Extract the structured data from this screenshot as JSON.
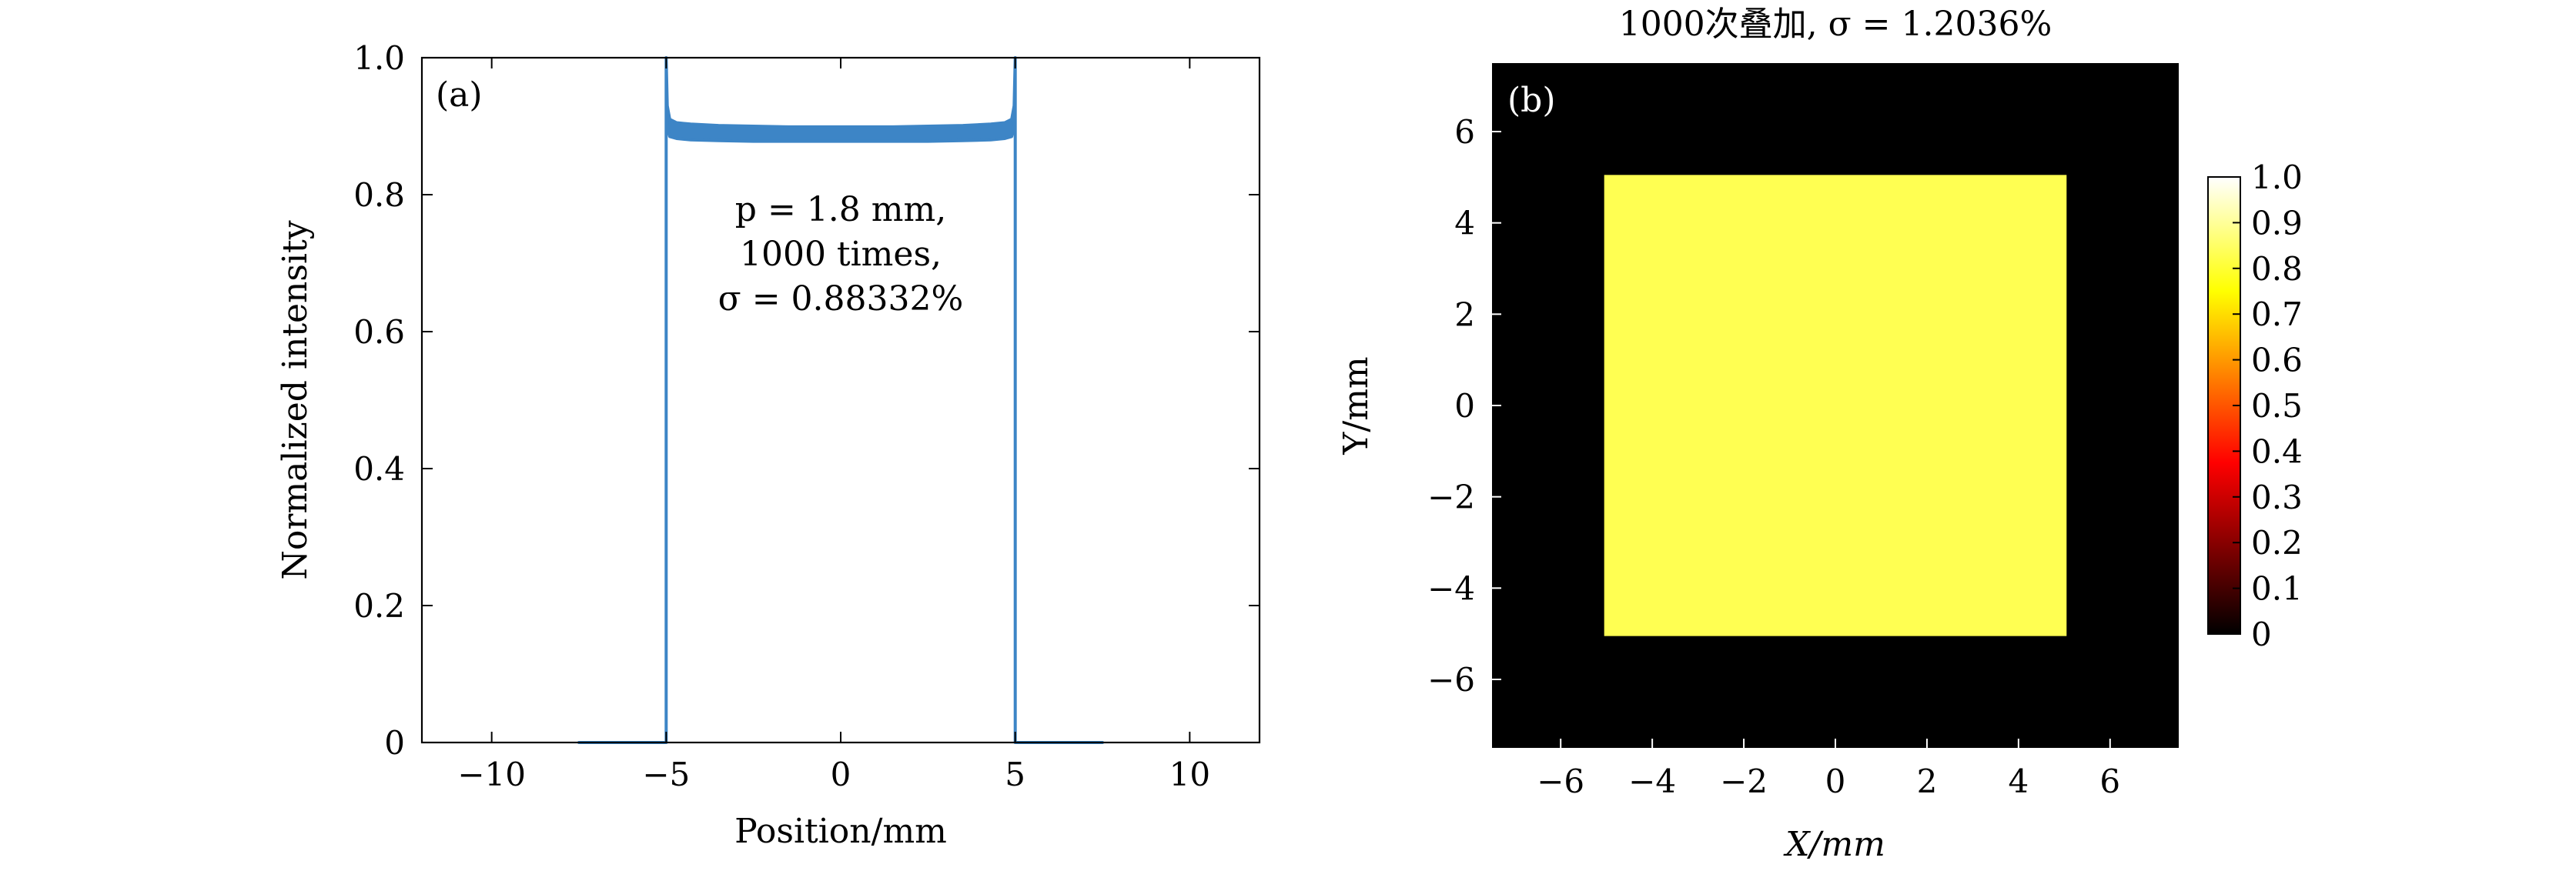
{
  "chart_data": [
    {
      "type": "line",
      "panel_label": "(a)",
      "title": "",
      "xlabel": "Position/mm",
      "ylabel": "Normalized intensity",
      "xlim": [
        -12,
        12
      ],
      "ylim": [
        0,
        1.0
      ],
      "xticks": [
        -10,
        -5,
        0,
        5,
        10
      ],
      "xtick_labels": [
        "−10",
        "−5",
        "0",
        "5",
        "10"
      ],
      "yticks": [
        0,
        0.2,
        0.4,
        0.6,
        0.8,
        1.0
      ],
      "ytick_labels": [
        "0",
        "0.2",
        "0.4",
        "0.6",
        "0.8",
        "1.0"
      ],
      "grid": false,
      "annotation": [
        "p = 1.8 mm,",
        "1000 times,",
        "σ = 0.88332%"
      ],
      "color": "#3d85c6",
      "series": [
        {
          "x": [
            -7.5,
            -5.05,
            -5.0,
            -5.0,
            -4.97,
            -4.9,
            -4.7,
            -4.3,
            -3.5,
            -2.5,
            -1.5,
            0,
            1.5,
            2.5,
            3.5,
            4.3,
            4.7,
            4.9,
            4.97,
            5.0,
            5.0,
            5.05,
            7.5
          ],
          "y_lower": [
            0,
            0,
            0,
            1.0,
            0.9,
            0.885,
            0.882,
            0.88,
            0.879,
            0.878,
            0.878,
            0.878,
            0.878,
            0.878,
            0.879,
            0.88,
            0.882,
            0.885,
            0.9,
            1.0,
            0,
            0,
            0
          ],
          "y_upper": [
            0,
            0,
            0,
            1.0,
            0.93,
            0.91,
            0.905,
            0.903,
            0.901,
            0.9,
            0.899,
            0.899,
            0.899,
            0.9,
            0.901,
            0.903,
            0.905,
            0.91,
            0.93,
            1.0,
            0,
            0,
            0
          ]
        }
      ]
    },
    {
      "type": "heatmap",
      "panel_label": "(b)",
      "title": "1000次叠加, σ = 1.2036%",
      "xlabel": "X/mm",
      "ylabel": "Y/mm",
      "xlim": [
        -7.5,
        7.5
      ],
      "ylim": [
        -7.5,
        7.5
      ],
      "xticks": [
        -6,
        -4,
        -2,
        0,
        2,
        4,
        6
      ],
      "xtick_labels": [
        "−6",
        "−4",
        "−2",
        "0",
        "2",
        "4",
        "6"
      ],
      "yticks": [
        -6,
        -4,
        -2,
        0,
        2,
        4,
        6
      ],
      "ytick_labels": [
        "−6",
        "−4",
        "−2",
        "0",
        "2",
        "4",
        "6"
      ],
      "background_value": 0,
      "region": {
        "x": [
          -5.05,
          5.05
        ],
        "y": [
          -5.05,
          5.05
        ],
        "value": 0.78
      },
      "region_color": "#ffff52",
      "colorbar": {
        "range": [
          0,
          1.0
        ],
        "ticks": [
          0,
          0.1,
          0.2,
          0.3,
          0.4,
          0.5,
          0.6,
          0.7,
          0.8,
          0.9,
          1.0
        ],
        "tick_labels": [
          "0",
          "0.1",
          "0.2",
          "0.3",
          "0.4",
          "0.5",
          "0.6",
          "0.7",
          "0.8",
          "0.9",
          "1.0"
        ],
        "colormap": "hot"
      }
    }
  ]
}
